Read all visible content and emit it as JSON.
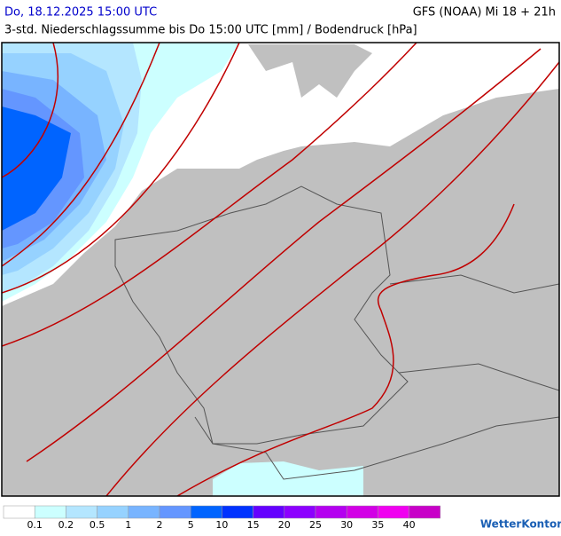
{
  "header": {
    "datetime": "Do, 18.12.2025 15:00 UTC",
    "model": "GFS (NOAA) Mi 18 + 21h",
    "subtitle": "3-std. Niederschlagssumme bis Do 15:00 UTC [mm] / Bodendruck [hPa]"
  },
  "legend": {
    "colors": [
      "#ffffff",
      "#ccffff",
      "#b4e6ff",
      "#96d2ff",
      "#78b4ff",
      "#6496ff",
      "#0064ff",
      "#0032ff",
      "#6400ff",
      "#8c00ff",
      "#b400f0",
      "#d200e6",
      "#f000f0",
      "#c800c8"
    ],
    "labels": [
      "0.1",
      "0.2",
      "0.5",
      "1",
      "2",
      "5",
      "10",
      "15",
      "20",
      "25",
      "30",
      "35",
      "40"
    ]
  },
  "logo": "WetterKontor"
}
